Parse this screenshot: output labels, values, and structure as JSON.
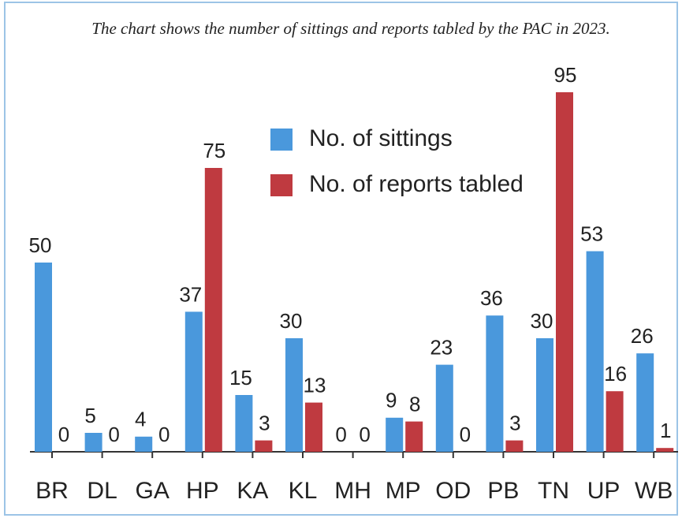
{
  "chart_data": {
    "type": "bar",
    "title": "The chart shows the number of sittings and reports tabled by the PAC in 2023.",
    "categories": [
      "BR",
      "DL",
      "GA",
      "HP",
      "KA",
      "KL",
      "MH",
      "MP",
      "OD",
      "PB",
      "TN",
      "UP",
      "WB"
    ],
    "series": [
      {
        "name": "No. of sittings",
        "color": "#4a98dc",
        "values": [
          50,
          5,
          4,
          37,
          15,
          30,
          0,
          9,
          23,
          36,
          30,
          53,
          26
        ]
      },
      {
        "name": "No. of reports tabled",
        "color": "#bf3a40",
        "values": [
          0,
          0,
          0,
          75,
          3,
          13,
          0,
          8,
          0,
          3,
          95,
          16,
          1
        ]
      }
    ]
  }
}
